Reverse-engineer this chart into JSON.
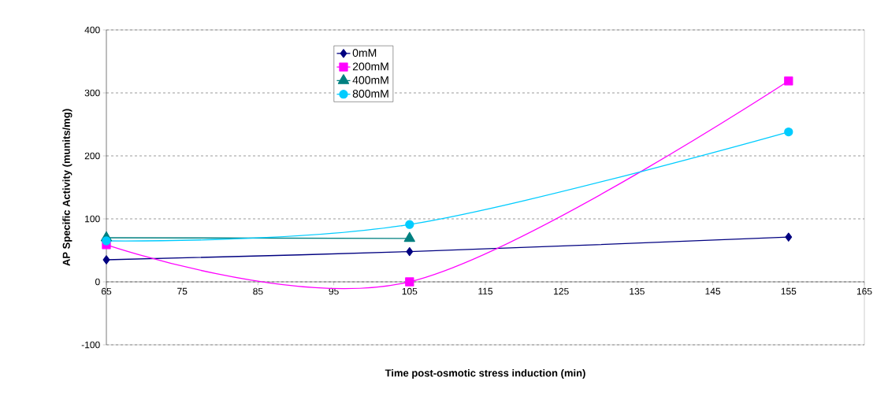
{
  "chart_data": {
    "type": "line",
    "xlabel": "Time post-osmotic stress induction (min)",
    "ylabel": "AP Specific Activity (munits/mg)",
    "xlim": [
      65,
      165
    ],
    "xticks": [
      65,
      75,
      85,
      95,
      105,
      115,
      125,
      135,
      145,
      155,
      165
    ],
    "ylim": [
      -100,
      400
    ],
    "yticks": [
      -100,
      0,
      100,
      200,
      300,
      400
    ],
    "grid": "y",
    "legend": "top left",
    "line_style": "solid",
    "series": [
      {
        "name": "0mM",
        "color": "#000080",
        "marker": "diamond",
        "x": [
          65,
          105,
          155
        ],
        "values": [
          35,
          48,
          71
        ]
      },
      {
        "name": "200mM",
        "color": "#ff00ff",
        "marker": "square",
        "x": [
          65,
          105,
          155
        ],
        "values": [
          59,
          0,
          319
        ]
      },
      {
        "name": "400mM",
        "color": "#008080",
        "marker": "triangle",
        "x": [
          65,
          105
        ],
        "values": [
          70,
          69
        ]
      },
      {
        "name": "800mM",
        "color": "#00ccff",
        "marker": "circle",
        "x": [
          65,
          105,
          155
        ],
        "values": [
          65,
          91,
          238
        ]
      }
    ]
  }
}
